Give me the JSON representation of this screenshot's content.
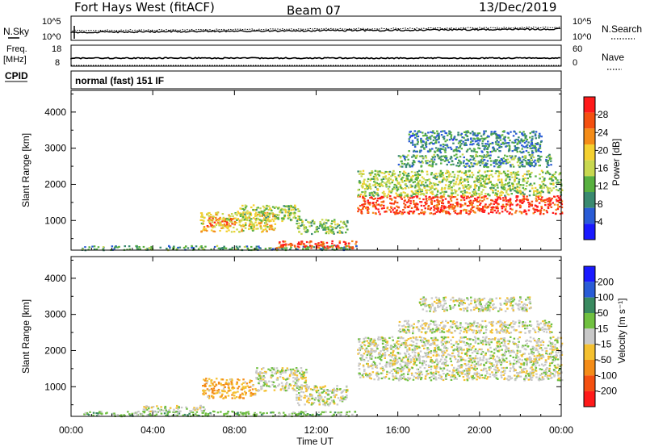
{
  "header": {
    "station": "Fort Hays West (fitACF)",
    "beam": "Beam 07",
    "date": "13/Dec/2019"
  },
  "noise_panel": {
    "left_label": "N.Sky",
    "right_label": "N.Search",
    "left_ticks": [
      "10^5",
      "10^0"
    ],
    "right_ticks": [
      "10^5",
      "10^0"
    ]
  },
  "freq_panel": {
    "left_label_1": "Freq.",
    "left_label_2": "[MHz]",
    "right_label": "Nave",
    "left_ticks": [
      "18",
      "8"
    ],
    "right_ticks": [
      "60",
      "0"
    ]
  },
  "cpid_panel": {
    "label": "CPID",
    "text": "normal (fast) 151 IF"
  },
  "colors": {
    "power": [
      "#1a1aff",
      "#2a5cd6",
      "#3a8a70",
      "#58b040",
      "#c8d850",
      "#f4d030",
      "#f48c18",
      "#f45010",
      "#ff1a1a"
    ],
    "velocity": [
      "#ff1a1a",
      "#f45010",
      "#f48c18",
      "#f4c030",
      "#c8c8c8",
      "#70c040",
      "#3a8a60",
      "#2a5cd6",
      "#1a1aff"
    ]
  },
  "chart_data": [
    {
      "type": "heatmap",
      "panel": "power",
      "xlabel": "Time UT",
      "ylabel": "Slant Range [km]",
      "xlim": [
        0,
        24
      ],
      "ylim": [
        180,
        4600
      ],
      "x_ticks": [
        "00:00",
        "04:00",
        "08:00",
        "12:00",
        "16:00",
        "20:00",
        "00:00"
      ],
      "y_ticks": [
        1000,
        2000,
        3000,
        4000
      ],
      "colorbar": {
        "label": "Power [dB]",
        "ticks": [
          "4",
          "8",
          "12",
          "16",
          "20",
          "24",
          "28"
        ],
        "range": [
          0,
          30
        ]
      },
      "regions": [
        {
          "t0": 0.5,
          "t1": 14.0,
          "r0": 200,
          "r1": 320,
          "value": 10
        },
        {
          "t0": 6.6,
          "t1": 8.0,
          "r0": 850,
          "r1": 1100,
          "value": 26
        },
        {
          "t0": 6.3,
          "t1": 10.0,
          "r0": 700,
          "r1": 1250,
          "value": 18
        },
        {
          "t0": 8.0,
          "t1": 11.2,
          "r0": 1000,
          "r1": 1450,
          "value": 14
        },
        {
          "t0": 11.0,
          "t1": 13.5,
          "r0": 650,
          "r1": 1050,
          "value": 12
        },
        {
          "t0": 10.0,
          "t1": 14.0,
          "r0": 250,
          "r1": 450,
          "value": 26
        },
        {
          "t0": 14.0,
          "t1": 24.0,
          "r0": 1200,
          "r1": 1700,
          "value": 26
        },
        {
          "t0": 14.0,
          "t1": 24.0,
          "r0": 1700,
          "r1": 2400,
          "value": 14
        },
        {
          "t0": 16.0,
          "t1": 23.5,
          "r0": 2500,
          "r1": 2850,
          "value": 10
        },
        {
          "t0": 16.5,
          "t1": 23.0,
          "r0": 2900,
          "r1": 3500,
          "value": 8
        }
      ]
    },
    {
      "type": "heatmap",
      "panel": "velocity",
      "xlabel": "Time UT",
      "ylabel": "Slant Range [km]",
      "xlim": [
        0,
        24
      ],
      "ylim": [
        180,
        4600
      ],
      "x_ticks": [
        "00:00",
        "04:00",
        "08:00",
        "12:00",
        "16:00",
        "20:00",
        "00:00"
      ],
      "y_ticks": [
        1000,
        2000,
        3000,
        4000
      ],
      "colorbar": {
        "label": "Velocity [m s⁻¹]",
        "ticks": [
          "200",
          "100",
          "50",
          "15",
          "-15",
          "-50",
          "-100",
          "-200"
        ]
      },
      "regions": [
        {
          "t0": 0.5,
          "t1": 14.0,
          "r0": 200,
          "r1": 340,
          "value": 30
        },
        {
          "t0": 3.5,
          "t1": 6.5,
          "r0": 330,
          "r1": 500,
          "value": 0
        },
        {
          "t0": 6.4,
          "t1": 9.0,
          "r0": 700,
          "r1": 1250,
          "value": -40
        },
        {
          "t0": 9.0,
          "t1": 11.5,
          "r0": 900,
          "r1": 1550,
          "value": 0
        },
        {
          "t0": 11.0,
          "t1": 13.5,
          "r0": 500,
          "r1": 1050,
          "value": 0
        },
        {
          "t0": 14.0,
          "t1": 24.0,
          "r0": 1200,
          "r1": 2400,
          "value": 0
        },
        {
          "t0": 16.0,
          "t1": 23.5,
          "r0": 2500,
          "r1": 2850,
          "value": 0
        },
        {
          "t0": 17.0,
          "t1": 22.5,
          "r0": 3100,
          "r1": 3500,
          "value": 0
        }
      ]
    }
  ]
}
